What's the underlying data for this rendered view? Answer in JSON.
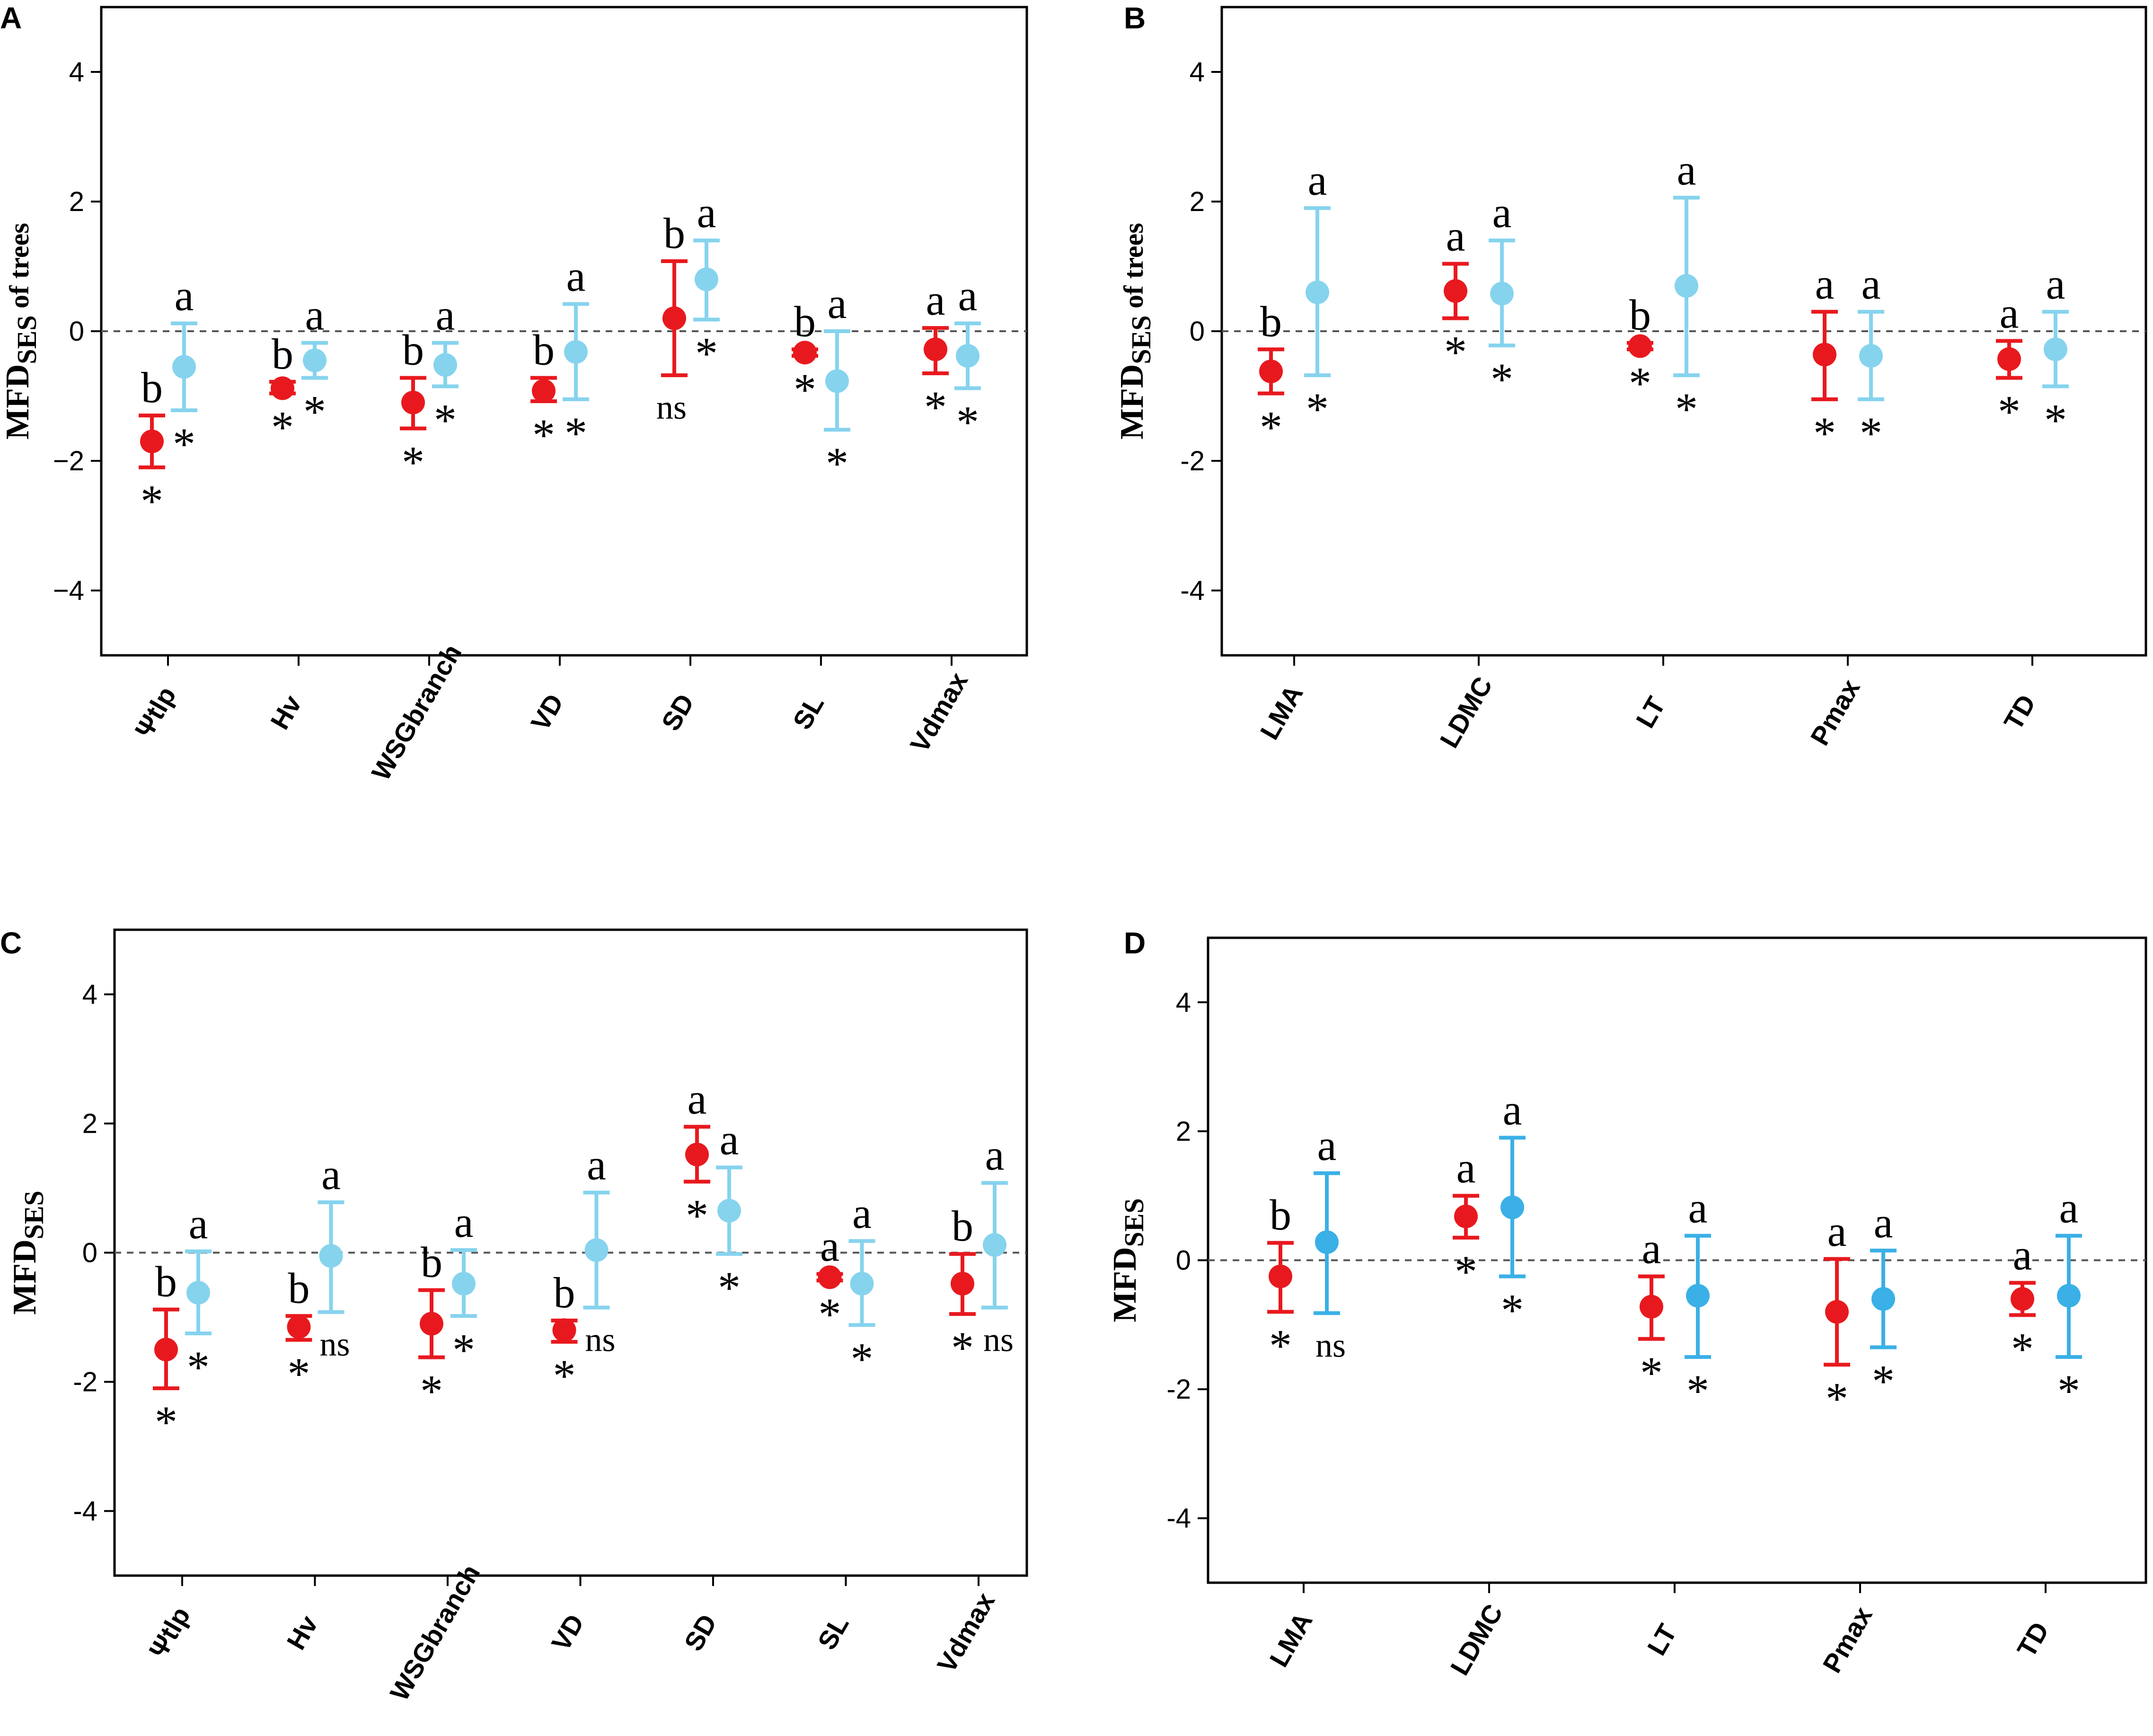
{
  "colors": {
    "red": "#e8191e",
    "light_blue": "#86d3ee",
    "blue_panel_d": "#3ab0e6"
  },
  "chart_data": [
    {
      "panel": "A",
      "type": "scatter",
      "ylabel": "MFD",
      "ylabel_sub": "SES",
      "ylabel_suffix": " of trees",
      "ylim": [
        -5,
        5
      ],
      "yticks": [
        {
          "value": 4,
          "label": "4"
        },
        {
          "value": 2,
          "label": "2"
        },
        {
          "value": 0,
          "label": "0"
        },
        {
          "value": -2,
          "label": "−2"
        },
        {
          "value": -4,
          "label": "−4"
        }
      ],
      "categories": [
        "Ψtlp",
        "Hv",
        "WSGbranch",
        "VD",
        "SD",
        "SL",
        "Vdmax"
      ],
      "series": [
        {
          "name": "red",
          "color": "#e8191e",
          "values": [
            -1.7,
            -0.88,
            -1.1,
            -0.92,
            0.2,
            -0.33,
            -0.28
          ],
          "lower": [
            -2.1,
            -0.96,
            -1.5,
            -1.08,
            -0.68,
            -0.38,
            -0.65
          ],
          "upper": [
            -1.3,
            -0.78,
            -0.72,
            -0.72,
            1.08,
            -0.28,
            0.05
          ],
          "letters": [
            "b",
            "b",
            "b",
            "b",
            "b",
            "b",
            "a"
          ],
          "sig": [
            "*",
            "*",
            "*",
            "*",
            "ns",
            "*",
            "*"
          ]
        },
        {
          "name": "light_blue",
          "color": "#86d3ee",
          "values": [
            -0.55,
            -0.45,
            -0.52,
            -0.32,
            0.8,
            -0.77,
            -0.38
          ],
          "lower": [
            -1.22,
            -0.72,
            -0.85,
            -1.05,
            0.18,
            -1.52,
            -0.88
          ],
          "upper": [
            0.12,
            -0.18,
            -0.18,
            0.42,
            1.4,
            0.0,
            0.12
          ],
          "letters": [
            "a",
            "a",
            "a",
            "a",
            "a",
            "a",
            "a"
          ],
          "sig": [
            "*",
            "*",
            "*",
            "*",
            "*",
            "*",
            "*"
          ]
        }
      ]
    },
    {
      "panel": "B",
      "type": "scatter",
      "ylabel": "MFD",
      "ylabel_sub": "SES",
      "ylabel_suffix": " of trees",
      "ylim": [
        -5,
        5
      ],
      "yticks": [
        {
          "value": 4,
          "label": "4"
        },
        {
          "value": 2,
          "label": "2"
        },
        {
          "value": 0,
          "label": "0"
        },
        {
          "value": -2,
          "label": "-2"
        },
        {
          "value": -4,
          "label": "-4"
        }
      ],
      "categories": [
        "LMA",
        "LDMC",
        "LT",
        "Pmax",
        "TD"
      ],
      "series": [
        {
          "name": "red",
          "color": "#e8191e",
          "values": [
            -0.62,
            0.62,
            -0.23,
            -0.36,
            -0.43
          ],
          "lower": [
            -0.96,
            0.2,
            -0.28,
            -1.05,
            -0.72
          ],
          "upper": [
            -0.28,
            1.04,
            -0.18,
            0.3,
            -0.15
          ],
          "letters": [
            "b",
            "a",
            "b",
            "a",
            "a"
          ],
          "sig": [
            "*",
            "*",
            "*",
            "*",
            "*"
          ]
        },
        {
          "name": "light_blue",
          "color": "#86d3ee",
          "values": [
            0.6,
            0.58,
            0.7,
            -0.38,
            -0.28
          ],
          "lower": [
            -0.68,
            -0.22,
            -0.68,
            -1.05,
            -0.85
          ],
          "upper": [
            1.9,
            1.4,
            2.06,
            0.3,
            0.3
          ],
          "letters": [
            "a",
            "a",
            "a",
            "a",
            "a"
          ],
          "sig": [
            "*",
            "*",
            "*",
            "*",
            "*"
          ]
        }
      ]
    },
    {
      "panel": "C",
      "type": "scatter",
      "ylabel": "MFD",
      "ylabel_sub": "SES",
      "ylabel_suffix": "",
      "ylim": [
        -5,
        5
      ],
      "yticks": [
        {
          "value": 4,
          "label": "4"
        },
        {
          "value": 2,
          "label": "2"
        },
        {
          "value": 0,
          "label": "0"
        },
        {
          "value": -2,
          "label": "-2"
        },
        {
          "value": -4,
          "label": "-4"
        }
      ],
      "categories": [
        "Ψtlp",
        "Hv",
        "WSGbranch",
        "VD",
        "SD",
        "SL",
        "Vdmax"
      ],
      "series": [
        {
          "name": "red",
          "color": "#e8191e",
          "values": [
            -1.5,
            -1.15,
            -1.1,
            -1.2,
            1.52,
            -0.38,
            -0.48
          ],
          "lower": [
            -2.1,
            -1.35,
            -1.62,
            -1.38,
            1.1,
            -0.43,
            -0.95
          ],
          "upper": [
            -0.88,
            -0.98,
            -0.58,
            -1.05,
            1.95,
            -0.33,
            -0.02
          ],
          "letters": [
            "b",
            "b",
            "b",
            "b",
            "a",
            "a",
            "b"
          ],
          "sig": [
            "*",
            "*",
            "*",
            "*",
            "*",
            "*",
            "*"
          ]
        },
        {
          "name": "light_blue",
          "color": "#86d3ee",
          "values": [
            -0.62,
            -0.05,
            -0.48,
            0.04,
            0.65,
            -0.48,
            0.12
          ],
          "lower": [
            -1.25,
            -0.92,
            -0.98,
            -0.85,
            -0.02,
            -1.12,
            -0.85
          ],
          "upper": [
            0.02,
            0.78,
            0.04,
            0.93,
            1.32,
            0.18,
            1.08
          ],
          "letters": [
            "a",
            "a",
            "a",
            "a",
            "a",
            "a",
            "a"
          ],
          "sig": [
            "*",
            "ns",
            "*",
            "ns",
            "*",
            "*",
            "ns"
          ]
        }
      ]
    },
    {
      "panel": "D",
      "type": "scatter",
      "ylabel": "MFD",
      "ylabel_sub": "SES",
      "ylabel_suffix": "",
      "ylim": [
        -5,
        5
      ],
      "yticks": [
        {
          "value": 4,
          "label": "4"
        },
        {
          "value": 2,
          "label": "2"
        },
        {
          "value": 0,
          "label": "0"
        },
        {
          "value": -2,
          "label": "-2"
        },
        {
          "value": -4,
          "label": "-4"
        }
      ],
      "categories": [
        "LMA",
        "LDMC",
        "LT",
        "Pmax",
        "TD"
      ],
      "series": [
        {
          "name": "red",
          "color": "#e8191e",
          "values": [
            -0.25,
            0.68,
            -0.72,
            -0.8,
            -0.6
          ],
          "lower": [
            -0.8,
            0.35,
            -1.22,
            -1.62,
            -0.85
          ],
          "upper": [
            0.27,
            1.0,
            -0.25,
            0.02,
            -0.35
          ],
          "letters": [
            "b",
            "a",
            "a",
            "a",
            "a"
          ],
          "sig": [
            "*",
            "*",
            "*",
            "*",
            "*"
          ]
        },
        {
          "name": "blue",
          "color": "#3ab0e6",
          "values": [
            0.28,
            0.82,
            -0.55,
            -0.6,
            -0.55
          ],
          "lower": [
            -0.82,
            -0.25,
            -1.5,
            -1.35,
            -1.5
          ],
          "upper": [
            1.35,
            1.9,
            0.38,
            0.15,
            0.38
          ],
          "letters": [
            "a",
            "a",
            "a",
            "a",
            "a"
          ],
          "sig": [
            "ns",
            "*",
            "*",
            "*",
            "*"
          ]
        }
      ]
    }
  ]
}
